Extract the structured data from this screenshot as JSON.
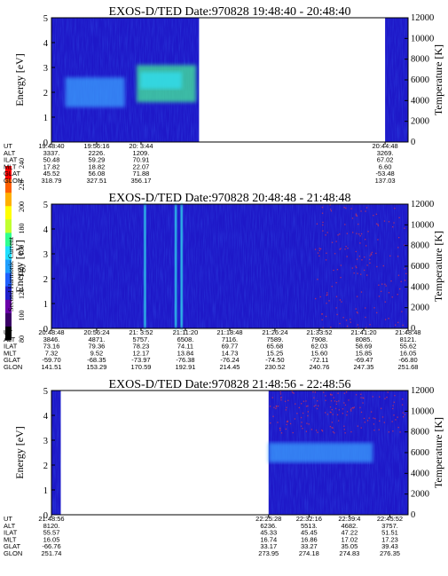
{
  "colors": {
    "background": "#1e18c8",
    "band_light": "#3aa0ff",
    "band_cyan": "#33ddee",
    "band_green": "#44ee99",
    "speckle_red": "#cc3355",
    "colorbar": [
      "#000000",
      "#3a0066",
      "#6a00a8",
      "#2020cc",
      "#2060ff",
      "#20a0ff",
      "#20e0ff",
      "#30ff90",
      "#c0ff30",
      "#ffff00",
      "#ffb000",
      "#ff6000",
      "#ff0000"
    ]
  },
  "colorbar": {
    "label": "Second Harmonic Current",
    "ticks": [
      "80",
      "100",
      "120",
      "140",
      "160",
      "180",
      "200",
      "220",
      "240"
    ]
  },
  "chart_data": [
    {
      "type": "heatmap",
      "title": "EXOS-D/TED   Date:970828   19:48:40 - 20:48:40",
      "ylabel": "Energy [eV]",
      "y2label": "Temperature [K]",
      "ylim": [
        0,
        5
      ],
      "y2lim": [
        0,
        12000
      ],
      "yticks": [
        "0",
        "1",
        "2",
        "3",
        "4",
        "5"
      ],
      "y2ticks": [
        "0",
        "2000",
        "4000",
        "6000",
        "8000",
        "10000",
        "12000"
      ],
      "orbit_rows": [
        "UT",
        "ALT",
        "ILAT",
        "MLT",
        "GLAT",
        "GLON"
      ],
      "orbit_columns": [
        {
          "time": "19:48:40",
          "values": [
            "19:48:40",
            "3337.",
            "50.48",
            "17.82",
            "45.52",
            "318.79"
          ]
        },
        {
          "time": "19:56:16",
          "values": [
            "19:56:16",
            "2226.",
            "59.29",
            "18.82",
            "56.08",
            "327.51"
          ]
        },
        {
          "time": "20: 3:44",
          "values": [
            "20: 3:44",
            "1209.",
            "70.91",
            "22.07",
            "71.88",
            "356.17"
          ]
        },
        {
          "time": "20:44:48",
          "values": [
            "20:44:48",
            "3269.",
            "67.02",
            "6.60",
            "-53.48",
            "137.03"
          ]
        }
      ],
      "data_coverage": [
        [
          "19:48:40",
          "20:13:30"
        ],
        [
          "20:44:48",
          "20:48:40"
        ]
      ],
      "features": [
        {
          "name": "enhanced band",
          "t_start": "19:51:00",
          "t_end": "20:01:00",
          "energy_ev": [
            1.4,
            2.6
          ]
        },
        {
          "name": "curved band",
          "t_start": "20:03:00",
          "t_end": "20:13:00",
          "energy_ev": [
            1.6,
            3.1
          ]
        }
      ]
    },
    {
      "type": "heatmap",
      "title": "EXOS-D/TED   Date:970828   20:48:48 - 21:48:48",
      "ylabel": "Energy [eV]",
      "y2label": "Temperature [K]",
      "ylim": [
        0,
        5
      ],
      "y2lim": [
        0,
        12000
      ],
      "yticks": [
        "0",
        "1",
        "2",
        "3",
        "4",
        "5"
      ],
      "y2ticks": [
        "0",
        "2000",
        "4000",
        "6000",
        "8000",
        "10000",
        "12000"
      ],
      "orbit_rows": [
        "UT",
        "ALT",
        "ILAT",
        "MLT",
        "GLAT",
        "GLON"
      ],
      "orbit_columns": [
        {
          "time": "20:48:48",
          "values": [
            "20:48:48",
            "3846.",
            "73.16",
            "7.32",
            "-59.70",
            "141.51"
          ]
        },
        {
          "time": "20:56:24",
          "values": [
            "20:56:24",
            "4871.",
            "79.36",
            "9.52",
            "-68.35",
            "153.29"
          ]
        },
        {
          "time": "21: 3:52",
          "values": [
            "21: 3:52",
            "5757.",
            "78.23",
            "12.17",
            "-73.97",
            "170.59"
          ]
        },
        {
          "time": "21:11:20",
          "values": [
            "21:11:20",
            "6508.",
            "74.11",
            "13.84",
            "-76.38",
            "192.91"
          ]
        },
        {
          "time": "21:18:48",
          "values": [
            "21:18:48",
            "7116.",
            "69.77",
            "14.73",
            "-76.24",
            "214.45"
          ]
        },
        {
          "time": "21:26:24",
          "values": [
            "21:26:24",
            "7589.",
            "65.68",
            "15.25",
            "-74.50",
            "230.52"
          ]
        },
        {
          "time": "21:33:52",
          "values": [
            "21:33:52",
            "7908.",
            "62.03",
            "15.60",
            "-72.11",
            "240.76"
          ]
        },
        {
          "time": "21:41:20",
          "values": [
            "21:41:20",
            "8085.",
            "58.69",
            "15.85",
            "-69.47",
            "247.35"
          ]
        },
        {
          "time": "21:48:48",
          "values": [
            "21:48:48",
            "8121.",
            "55.62",
            "16.05",
            "-66.80",
            "251.68"
          ]
        }
      ],
      "data_coverage": [
        [
          "20:48:48",
          "21:48:48"
        ]
      ],
      "features": [
        {
          "name": "vertical streak",
          "time": "21:04:30"
        },
        {
          "name": "vertical streak",
          "time": "21:09:40"
        },
        {
          "name": "vertical streak",
          "time": "21:10:40"
        },
        {
          "name": "red speckle region",
          "t_start": "21:33:00",
          "t_end": "21:48:48"
        }
      ]
    },
    {
      "type": "heatmap",
      "title": "EXOS-D/TED   Date:970828   21:48:56 - 22:48:56",
      "ylabel": "Energy [eV]",
      "y2label": "Temperature [K]",
      "ylim": [
        0,
        5
      ],
      "y2lim": [
        0,
        12000
      ],
      "yticks": [
        "0",
        "1",
        "2",
        "3",
        "4",
        "5"
      ],
      "y2ticks": [
        "0",
        "2000",
        "4000",
        "6000",
        "8000",
        "10000",
        "12000"
      ],
      "orbit_rows": [
        "UT",
        "ALT",
        "ILAT",
        "MLT",
        "GLAT",
        "GLON"
      ],
      "orbit_columns": [
        {
          "time": "21:48:56",
          "values": [
            "21:48:56",
            "8120.",
            "55.57",
            "16.05",
            "-66.76",
            "251.74"
          ]
        },
        {
          "time": "22:25:28",
          "values": [
            "22:25:28",
            "6236.",
            "45.33",
            "16.74",
            "33.17",
            "273.95"
          ]
        },
        {
          "time": "22:32:16",
          "values": [
            "22:32:16",
            "5513.",
            "45.45",
            "16.86",
            "33.27",
            "274.18"
          ]
        },
        {
          "time": "22:39:4",
          "values": [
            "22:39:4",
            "4682.",
            "47.22",
            "17.02",
            "35.05",
            "274.83"
          ]
        },
        {
          "time": "22:45:52",
          "values": [
            "22:45:52",
            "3757.",
            "51.51",
            "17.23",
            "39.43",
            "276.35"
          ]
        }
      ],
      "data_coverage": [
        [
          "21:48:56",
          "21:50:30"
        ],
        [
          "22:25:28",
          "22:48:56"
        ]
      ],
      "features": [
        {
          "name": "enhanced band",
          "t_start": "22:25:28",
          "t_end": "22:43:00",
          "energy_ev": [
            2.1,
            2.9
          ]
        },
        {
          "name": "red speckle region",
          "t_start": "22:25:28",
          "t_end": "22:48:56",
          "energy_ev": [
            3.3,
            5.0
          ]
        }
      ]
    }
  ]
}
